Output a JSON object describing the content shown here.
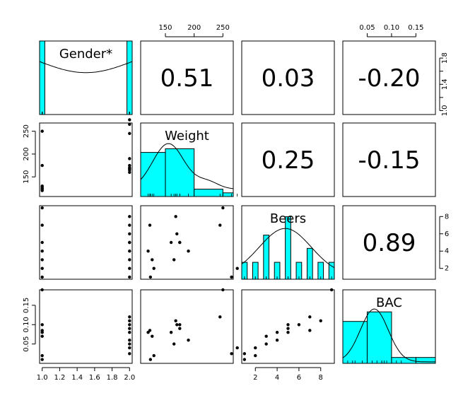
{
  "chart_data": {
    "type": "scatter-matrix",
    "variables": [
      {
        "name": "Gender*",
        "label": "Gender*",
        "range": [
          0.97,
          2.03
        ],
        "ticks": [
          1.0,
          1.2,
          1.4,
          1.6,
          1.8,
          2.0
        ],
        "tick_labels": [
          "1.0",
          "1.2",
          "1.4",
          "1.6",
          "1.8",
          "2.0"
        ]
      },
      {
        "name": "Weight",
        "label": "Weight",
        "range": [
          107,
          268
        ],
        "ticks": [
          150,
          200,
          250
        ],
        "tick_labels": [
          "150",
          "200",
          "250"
        ]
      },
      {
        "name": "Beers",
        "label": "Beers",
        "range": [
          0.75,
          9.25
        ],
        "ticks": [
          2,
          4,
          6,
          8
        ],
        "tick_labels": [
          "2",
          "4",
          "6",
          "8"
        ]
      },
      {
        "name": "BAC",
        "label": "BAC",
        "range": [
          0.0,
          0.19
        ],
        "ticks": [
          0.05,
          0.1,
          0.15
        ],
        "tick_labels": [
          "0.05",
          "0.10",
          "0.15"
        ]
      }
    ],
    "diag_axis_ticks": [
      1.0,
      1.4,
      1.8
    ],
    "diag_axis_labels": [
      "1.0",
      "1.4",
      "1.8"
    ],
    "diag_axis_minor": [
      1.2,
      1.6
    ],
    "observations": {
      "gender": [
        1,
        1,
        1,
        1,
        1,
        1,
        1,
        2,
        2,
        2,
        2,
        2,
        2,
        2,
        2,
        2
      ],
      "weight": [
        124,
        130,
        127,
        120,
        175,
        123,
        250,
        265,
        275,
        165,
        190,
        160,
        175,
        170,
        245,
        168
      ],
      "beers": [
        1,
        2,
        3,
        4,
        5,
        7,
        9,
        1,
        2,
        3,
        4,
        5,
        5,
        6,
        7,
        8
      ],
      "bac": [
        0.01,
        0.02,
        0.07,
        0.08,
        0.1,
        0.085,
        0.19,
        0.025,
        0.04,
        0.05,
        0.06,
        0.08,
        0.09,
        0.1,
        0.12,
        0.11
      ]
    },
    "correlations": [
      {
        "row": 0,
        "col": 1,
        "value": "0.51"
      },
      {
        "row": 0,
        "col": 2,
        "value": "0.03"
      },
      {
        "row": 0,
        "col": 3,
        "value": "-0.20"
      },
      {
        "row": 1,
        "col": 2,
        "value": "0.25"
      },
      {
        "row": 1,
        "col": 3,
        "value": "-0.15"
      },
      {
        "row": 2,
        "col": 3,
        "value": "0.89"
      }
    ],
    "histograms": [
      {
        "var": 0,
        "bars": [
          [
            0.97,
            1.03,
            1.0
          ],
          [
            1.97,
            2.03,
            1.0
          ]
        ]
      },
      {
        "var": 1,
        "bars": [
          [
            107,
            150,
            0.6
          ],
          [
            150,
            200,
            0.65
          ],
          [
            200,
            250,
            0.1
          ],
          [
            250,
            268,
            0.05
          ]
        ]
      },
      {
        "var": 2,
        "bars": [
          [
            0.75,
            1.25,
            0.23
          ],
          [
            1.75,
            2.25,
            0.23
          ],
          [
            2.75,
            3.25,
            0.6
          ],
          [
            3.75,
            4.25,
            0.23
          ],
          [
            4.75,
            5.25,
            0.85
          ],
          [
            5.75,
            6.25,
            0.23
          ],
          [
            6.75,
            7.25,
            0.42
          ],
          [
            7.75,
            8.25,
            0.23
          ],
          [
            8.75,
            9.25,
            0.23
          ]
        ]
      },
      {
        "var": 3,
        "bars": [
          [
            0.0,
            0.05,
            0.57
          ],
          [
            0.05,
            0.1,
            0.7
          ],
          [
            0.1,
            0.15,
            0.08
          ],
          [
            0.15,
            0.19,
            0.08
          ]
        ]
      }
    ],
    "hist_fill": "#00ffff",
    "grid": false,
    "legend": "none"
  }
}
